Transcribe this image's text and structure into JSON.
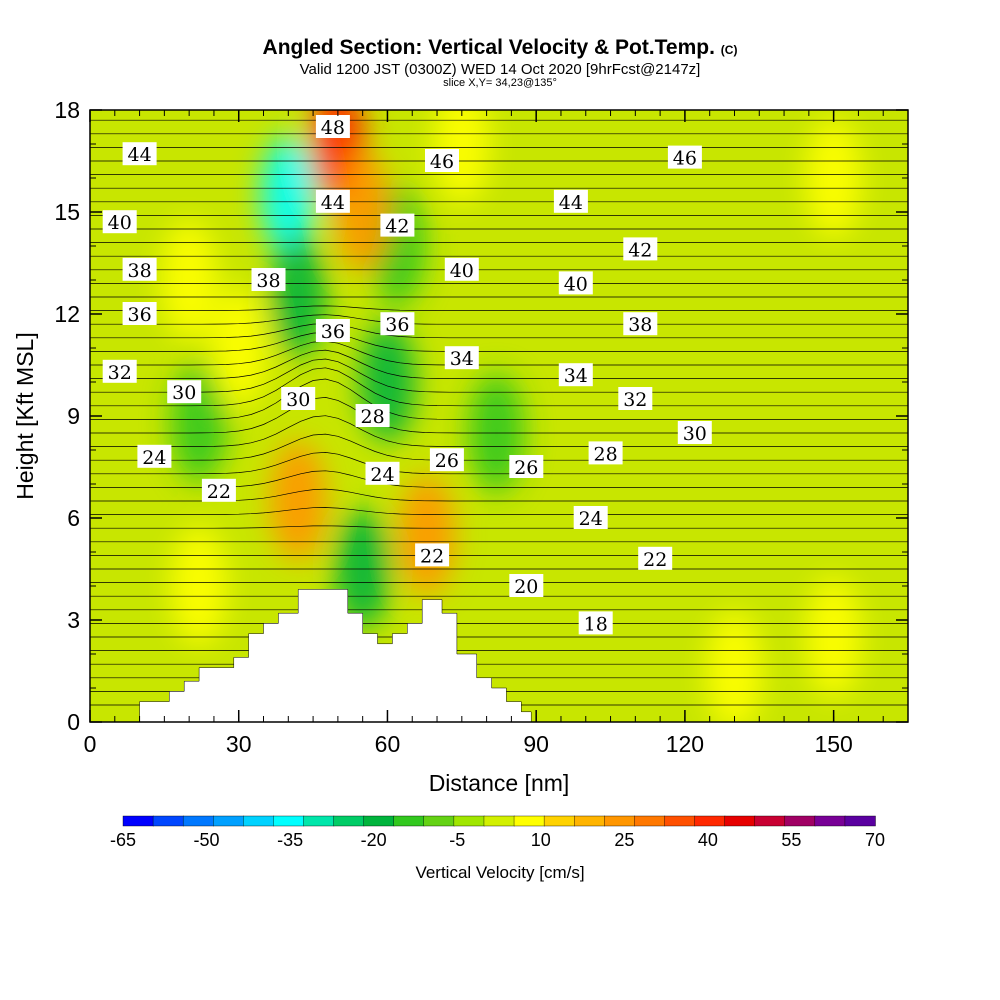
{
  "header": {
    "title": "Angled Section: Vertical Velocity & Pot.Temp.",
    "title_suffix": "(C)",
    "subtitle": "Valid 1200 JST (0300Z) WED 14 Oct 2020 [9hrFcst@2147z]",
    "slice_info": "slice X,Y= 34,23@135°"
  },
  "chart_data": {
    "type": "heatmap",
    "xlabel": "Distance [nm]",
    "ylabel": "Height [Kft MSL]",
    "xlim": [
      0,
      165
    ],
    "ylim": [
      0,
      18
    ],
    "x_ticks": [
      "0",
      "30",
      "60",
      "90",
      "120",
      "150"
    ],
    "y_ticks": [
      "0",
      "3",
      "6",
      "9",
      "12",
      "15",
      "18"
    ],
    "x_tick_values": [
      0,
      30,
      60,
      90,
      120,
      150
    ],
    "y_tick_values": [
      0,
      3,
      6,
      9,
      12,
      15,
      18
    ],
    "colorbar": {
      "title": "Vertical Velocity [cm/s]",
      "tick_labels": [
        "-65",
        "-50",
        "-35",
        "-20",
        "-5",
        "10",
        "25",
        "40",
        "55",
        "70"
      ],
      "colors": [
        "#0000ff",
        "#0046ff",
        "#0078ff",
        "#00a0ff",
        "#00d2ff",
        "#00ffff",
        "#00e6aa",
        "#00cc66",
        "#00b43c",
        "#32c81e",
        "#64d214",
        "#a0e600",
        "#d2f000",
        "#ffff00",
        "#ffd200",
        "#ffb400",
        "#ff9600",
        "#ff7800",
        "#ff5000",
        "#ff2800",
        "#e60000",
        "#c80032",
        "#a00064",
        "#780096",
        "#5a00a0"
      ]
    },
    "terrain": [
      [
        0,
        0
      ],
      [
        10,
        0
      ],
      [
        10,
        0.6
      ],
      [
        16,
        0.6
      ],
      [
        16,
        0.9
      ],
      [
        19,
        0.9
      ],
      [
        19,
        1.2
      ],
      [
        22,
        1.2
      ],
      [
        22,
        1.6
      ],
      [
        29,
        1.6
      ],
      [
        29,
        1.9
      ],
      [
        32,
        1.9
      ],
      [
        32,
        2.6
      ],
      [
        35,
        2.6
      ],
      [
        35,
        2.9
      ],
      [
        38,
        2.9
      ],
      [
        38,
        3.2
      ],
      [
        42,
        3.2
      ],
      [
        42,
        3.9
      ],
      [
        52,
        3.9
      ],
      [
        52,
        3.2
      ],
      [
        55,
        3.2
      ],
      [
        55,
        2.6
      ],
      [
        58,
        2.6
      ],
      [
        58,
        2.3
      ],
      [
        61,
        2.3
      ],
      [
        61,
        2.6
      ],
      [
        64,
        2.6
      ],
      [
        64,
        2.9
      ],
      [
        67,
        2.9
      ],
      [
        67,
        3.6
      ],
      [
        71,
        3.6
      ],
      [
        71,
        3.2
      ],
      [
        74,
        3.2
      ],
      [
        74,
        2.0
      ],
      [
        78,
        2.0
      ],
      [
        78,
        1.3
      ],
      [
        81,
        1.3
      ],
      [
        81,
        1.0
      ],
      [
        84,
        1.0
      ],
      [
        84,
        0.6
      ],
      [
        87,
        0.6
      ],
      [
        87,
        0.3
      ],
      [
        89,
        0.3
      ],
      [
        89,
        0
      ],
      [
        165,
        0
      ]
    ],
    "velocity_features": [
      {
        "x": 40,
        "y": 15.5,
        "value": -35
      },
      {
        "x": 42,
        "y": 12.5,
        "value": -20
      },
      {
        "x": 55,
        "y": 4.5,
        "value": -20
      },
      {
        "x": 60,
        "y": 10.0,
        "value": -20
      },
      {
        "x": 62,
        "y": 14.0,
        "value": -15
      },
      {
        "x": 82,
        "y": 8.5,
        "value": -12
      },
      {
        "x": 22,
        "y": 8.8,
        "value": -12
      },
      {
        "x": 50,
        "y": 17.0,
        "value": 40
      },
      {
        "x": 55,
        "y": 15.0,
        "value": 25
      },
      {
        "x": 42,
        "y": 6.5,
        "value": 25
      },
      {
        "x": 68,
        "y": 5.5,
        "value": 25
      },
      {
        "x": 75,
        "y": 17.0,
        "value": 10
      },
      {
        "x": 20,
        "y": 13.0,
        "value": 10
      },
      {
        "x": 22,
        "y": 4.0,
        "value": 10
      },
      {
        "x": 30,
        "y": 11.0,
        "value": 10
      },
      {
        "x": 150,
        "y": 2.5,
        "value": 10
      },
      {
        "x": 130,
        "y": 1.5,
        "value": 10
      },
      {
        "x": 150,
        "y": 16.0,
        "value": 10
      }
    ],
    "isentrope_labels": [
      {
        "x": 49,
        "y": 17.5,
        "text": "48"
      },
      {
        "x": 10,
        "y": 16.7,
        "text": "44"
      },
      {
        "x": 71,
        "y": 16.5,
        "text": "46"
      },
      {
        "x": 120,
        "y": 16.6,
        "text": "46"
      },
      {
        "x": 49,
        "y": 15.3,
        "text": "44"
      },
      {
        "x": 97,
        "y": 15.3,
        "text": "44"
      },
      {
        "x": 6,
        "y": 14.7,
        "text": "40"
      },
      {
        "x": 62,
        "y": 14.6,
        "text": "42"
      },
      {
        "x": 111,
        "y": 13.9,
        "text": "42"
      },
      {
        "x": 10,
        "y": 13.3,
        "text": "38"
      },
      {
        "x": 36,
        "y": 13.0,
        "text": "38"
      },
      {
        "x": 75,
        "y": 13.3,
        "text": "40"
      },
      {
        "x": 98,
        "y": 12.9,
        "text": "40"
      },
      {
        "x": 10,
        "y": 12.0,
        "text": "36"
      },
      {
        "x": 49,
        "y": 11.5,
        "text": "36"
      },
      {
        "x": 62,
        "y": 11.7,
        "text": "36"
      },
      {
        "x": 111,
        "y": 11.7,
        "text": "38"
      },
      {
        "x": 6,
        "y": 10.3,
        "text": "32"
      },
      {
        "x": 75,
        "y": 10.7,
        "text": "34"
      },
      {
        "x": 98,
        "y": 10.2,
        "text": "34"
      },
      {
        "x": 19,
        "y": 9.7,
        "text": "30"
      },
      {
        "x": 42,
        "y": 9.5,
        "text": "30"
      },
      {
        "x": 57,
        "y": 9.0,
        "text": "28"
      },
      {
        "x": 110,
        "y": 9.5,
        "text": "32"
      },
      {
        "x": 122,
        "y": 8.5,
        "text": "30"
      },
      {
        "x": 13,
        "y": 7.8,
        "text": "24"
      },
      {
        "x": 59,
        "y": 7.3,
        "text": "24"
      },
      {
        "x": 72,
        "y": 7.7,
        "text": "26"
      },
      {
        "x": 88,
        "y": 7.5,
        "text": "26"
      },
      {
        "x": 104,
        "y": 7.9,
        "text": "28"
      },
      {
        "x": 26,
        "y": 6.8,
        "text": "22"
      },
      {
        "x": 101,
        "y": 6.0,
        "text": "24"
      },
      {
        "x": 69,
        "y": 4.9,
        "text": "22"
      },
      {
        "x": 114,
        "y": 4.8,
        "text": "22"
      },
      {
        "x": 88,
        "y": 4.0,
        "text": "20"
      },
      {
        "x": 102,
        "y": 2.9,
        "text": "18"
      }
    ]
  }
}
